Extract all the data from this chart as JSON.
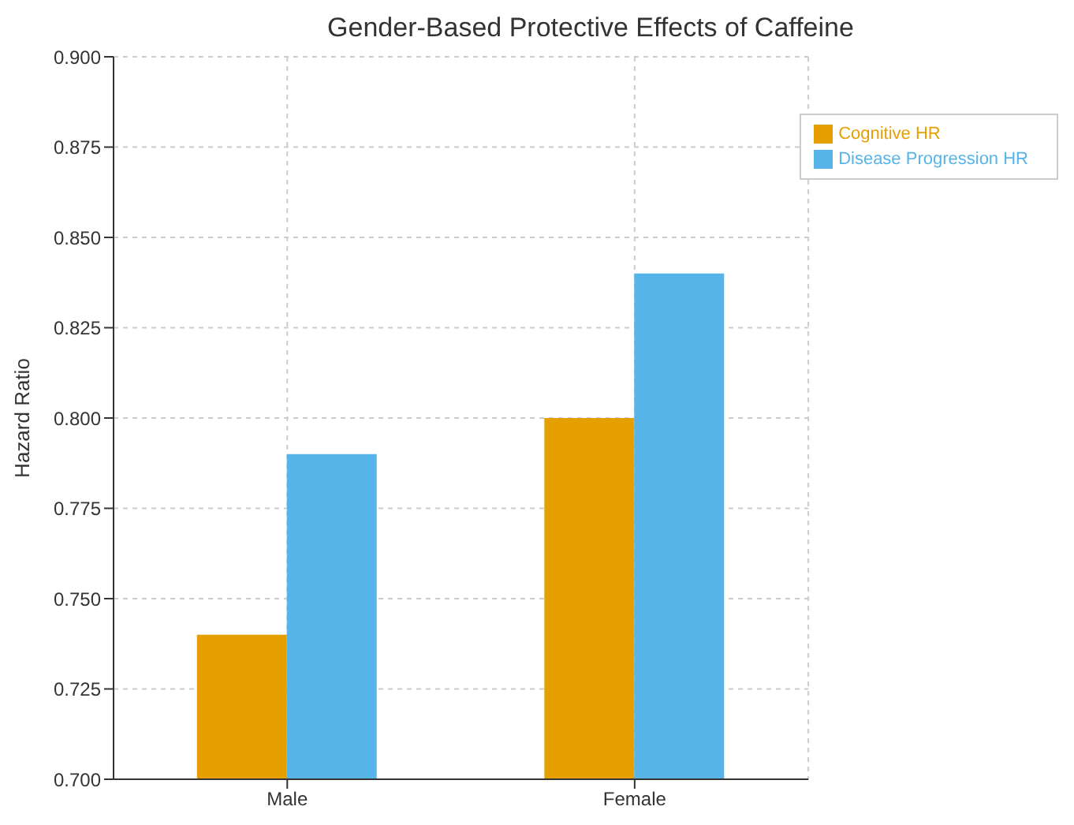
{
  "chart_data": {
    "type": "bar",
    "title": "Gender-Based Protective Effects of Caffeine",
    "ylabel": "Hazard Ratio",
    "categories": [
      "Male",
      "Female"
    ],
    "series": [
      {
        "name": "Cognitive HR",
        "color": "#e69f00",
        "values": [
          0.74,
          0.8
        ]
      },
      {
        "name": "Disease Progression HR",
        "color": "#56b4e9",
        "values": [
          0.79,
          0.84
        ]
      }
    ],
    "ylim": [
      0.7,
      0.9
    ],
    "yticks": [
      {
        "value": 0.7,
        "label": "0.700"
      },
      {
        "value": 0.725,
        "label": "0.725"
      },
      {
        "value": 0.75,
        "label": "0.750"
      },
      {
        "value": 0.775,
        "label": "0.775"
      },
      {
        "value": 0.8,
        "label": "0.800"
      },
      {
        "value": 0.825,
        "label": "0.825"
      },
      {
        "value": 0.85,
        "label": "0.850"
      },
      {
        "value": 0.875,
        "label": "0.875"
      },
      {
        "value": 0.9,
        "label": "0.900"
      }
    ],
    "grid": true,
    "legend": "top right"
  }
}
